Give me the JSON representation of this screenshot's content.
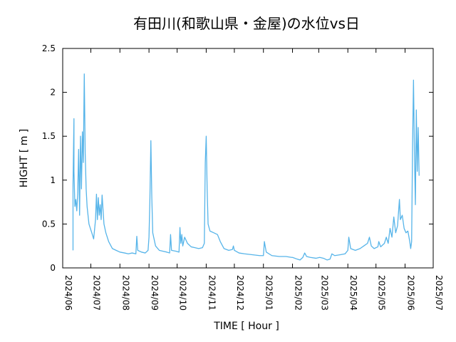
{
  "chart_data": {
    "type": "line",
    "title": "有田川(和歌山県・金屋)の水位vs日",
    "xlabel": "TIME [ Hour ]",
    "ylabel": "HIGHT [ m ]",
    "ylim": [
      0,
      2.5
    ],
    "xlim": [
      "2024/06",
      "2025/07"
    ],
    "grid": false,
    "line_color": "#56b4e9",
    "x_ticks": [
      "2024/06",
      "2024/07",
      "2024/08",
      "2024/09",
      "2024/10",
      "2024/11",
      "2024/12",
      "2025/01",
      "2025/02",
      "2025/03",
      "2025/04",
      "2025/05",
      "2025/06",
      "2025/07"
    ],
    "y_ticks": [
      "0",
      "0.5",
      "1",
      "1.5",
      "2",
      "2.5"
    ],
    "series": [
      {
        "points": [
          [
            "2024-06-12",
            0.2
          ],
          [
            "2024-06-12",
            0.95
          ],
          [
            "2024-06-13",
            1.7
          ],
          [
            "2024-06-13",
            1.1
          ],
          [
            "2024-06-14",
            0.7
          ],
          [
            "2024-06-15",
            0.78
          ],
          [
            "2024-06-16",
            0.65
          ],
          [
            "2024-06-17",
            0.85
          ],
          [
            "2024-06-18",
            1.35
          ],
          [
            "2024-06-19",
            0.6
          ],
          [
            "2024-06-20",
            1.5
          ],
          [
            "2024-06-21",
            0.9
          ],
          [
            "2024-06-22",
            1.55
          ],
          [
            "2024-06-23",
            1.2
          ],
          [
            "2024-06-24",
            2.21
          ],
          [
            "2024-06-25",
            1.3
          ],
          [
            "2024-06-26",
            0.9
          ],
          [
            "2024-06-27",
            0.7
          ],
          [
            "2024-06-29",
            0.5
          ],
          [
            "2024-07-02",
            0.4
          ],
          [
            "2024-07-04",
            0.33
          ],
          [
            "2024-07-06",
            0.55
          ],
          [
            "2024-07-07",
            0.84
          ],
          [
            "2024-07-08",
            0.55
          ],
          [
            "2024-07-09",
            0.8
          ],
          [
            "2024-07-10",
            0.6
          ],
          [
            "2024-07-11",
            0.72
          ],
          [
            "2024-07-12",
            0.55
          ],
          [
            "2024-07-13",
            0.83
          ],
          [
            "2024-07-15",
            0.5
          ],
          [
            "2024-07-17",
            0.4
          ],
          [
            "2024-07-20",
            0.3
          ],
          [
            "2024-07-24",
            0.22
          ],
          [
            "2024-07-28",
            0.2
          ],
          [
            "2024-08-01",
            0.18
          ],
          [
            "2024-08-06",
            0.17
          ],
          [
            "2024-08-10",
            0.16
          ],
          [
            "2024-08-14",
            0.17
          ],
          [
            "2024-08-18",
            0.16
          ],
          [
            "2024-08-19",
            0.36
          ],
          [
            "2024-08-20",
            0.2
          ],
          [
            "2024-08-24",
            0.18
          ],
          [
            "2024-08-28",
            0.17
          ],
          [
            "2024-08-31",
            0.2
          ],
          [
            "2024-09-01",
            0.35
          ],
          [
            "2024-09-02",
            0.8
          ],
          [
            "2024-09-03",
            1.45
          ],
          [
            "2024-09-04",
            0.8
          ],
          [
            "2024-09-05",
            0.4
          ],
          [
            "2024-09-08",
            0.25
          ],
          [
            "2024-09-12",
            0.2
          ],
          [
            "2024-09-16",
            0.19
          ],
          [
            "2024-09-20",
            0.18
          ],
          [
            "2024-09-23",
            0.17
          ],
          [
            "2024-09-24",
            0.38
          ],
          [
            "2024-09-25",
            0.2
          ],
          [
            "2024-09-30",
            0.19
          ],
          [
            "2024-10-03",
            0.18
          ],
          [
            "2024-10-04",
            0.46
          ],
          [
            "2024-10-05",
            0.28
          ],
          [
            "2024-10-06",
            0.38
          ],
          [
            "2024-10-07",
            0.25
          ],
          [
            "2024-10-09",
            0.35
          ],
          [
            "2024-10-12",
            0.28
          ],
          [
            "2024-10-16",
            0.24
          ],
          [
            "2024-10-20",
            0.23
          ],
          [
            "2024-10-24",
            0.22
          ],
          [
            "2024-10-28",
            0.23
          ],
          [
            "2024-10-30",
            0.28
          ],
          [
            "2024-10-31",
            1.2
          ],
          [
            "2024-11-01",
            1.5
          ],
          [
            "2024-11-02",
            0.9
          ],
          [
            "2024-11-03",
            0.5
          ],
          [
            "2024-11-05",
            0.42
          ],
          [
            "2024-11-09",
            0.4
          ],
          [
            "2024-11-13",
            0.38
          ],
          [
            "2024-11-16",
            0.3
          ],
          [
            "2024-11-20",
            0.22
          ],
          [
            "2024-11-25",
            0.2
          ],
          [
            "2024-11-29",
            0.21
          ],
          [
            "2024-11-30",
            0.25
          ],
          [
            "2024-12-01",
            0.2
          ],
          [
            "2024-12-06",
            0.17
          ],
          [
            "2024-12-12",
            0.16
          ],
          [
            "2024-12-20",
            0.15
          ],
          [
            "2024-12-28",
            0.14
          ],
          [
            "2025-01-01",
            0.14
          ],
          [
            "2025-01-02",
            0.3
          ],
          [
            "2025-01-04",
            0.18
          ],
          [
            "2025-01-10",
            0.14
          ],
          [
            "2025-01-18",
            0.13
          ],
          [
            "2025-01-25",
            0.13
          ],
          [
            "2025-01-31",
            0.12
          ],
          [
            "2025-02-01",
            0.12
          ],
          [
            "2025-02-06",
            0.1
          ],
          [
            "2025-02-09",
            0.09
          ],
          [
            "2025-02-12",
            0.12
          ],
          [
            "2025-02-14",
            0.17
          ],
          [
            "2025-02-16",
            0.13
          ],
          [
            "2025-02-20",
            0.12
          ],
          [
            "2025-02-26",
            0.11
          ],
          [
            "2025-03-02",
            0.12
          ],
          [
            "2025-03-06",
            0.11
          ],
          [
            "2025-03-10",
            0.09
          ],
          [
            "2025-03-13",
            0.1
          ],
          [
            "2025-03-15",
            0.16
          ],
          [
            "2025-03-18",
            0.14
          ],
          [
            "2025-03-24",
            0.15
          ],
          [
            "2025-03-29",
            0.16
          ],
          [
            "2025-04-01",
            0.2
          ],
          [
            "2025-04-02",
            0.35
          ],
          [
            "2025-04-04",
            0.22
          ],
          [
            "2025-04-09",
            0.2
          ],
          [
            "2025-04-14",
            0.22
          ],
          [
            "2025-04-18",
            0.25
          ],
          [
            "2025-04-22",
            0.28
          ],
          [
            "2025-04-24",
            0.35
          ],
          [
            "2025-04-26",
            0.25
          ],
          [
            "2025-04-29",
            0.22
          ],
          [
            "2025-05-03",
            0.24
          ],
          [
            "2025-05-04",
            0.3
          ],
          [
            "2025-05-06",
            0.24
          ],
          [
            "2025-05-10",
            0.28
          ],
          [
            "2025-05-12",
            0.35
          ],
          [
            "2025-05-14",
            0.28
          ],
          [
            "2025-05-16",
            0.45
          ],
          [
            "2025-05-18",
            0.35
          ],
          [
            "2025-05-20",
            0.58
          ],
          [
            "2025-05-22",
            0.4
          ],
          [
            "2025-05-24",
            0.48
          ],
          [
            "2025-05-26",
            0.78
          ],
          [
            "2025-05-27",
            0.55
          ],
          [
            "2025-05-29",
            0.6
          ],
          [
            "2025-05-31",
            0.45
          ],
          [
            "2025-06-02",
            0.4
          ],
          [
            "2025-06-04",
            0.42
          ],
          [
            "2025-06-06",
            0.3
          ],
          [
            "2025-06-07",
            0.22
          ],
          [
            "2025-06-08",
            0.3
          ],
          [
            "2025-06-09",
            1.4
          ],
          [
            "2025-06-10",
            2.14
          ],
          [
            "2025-06-11",
            1.3
          ],
          [
            "2025-06-12",
            0.72
          ],
          [
            "2025-06-13",
            1.8
          ],
          [
            "2025-06-14",
            1.1
          ],
          [
            "2025-06-15",
            1.6
          ],
          [
            "2025-06-16",
            1.05
          ]
        ]
      }
    ]
  }
}
